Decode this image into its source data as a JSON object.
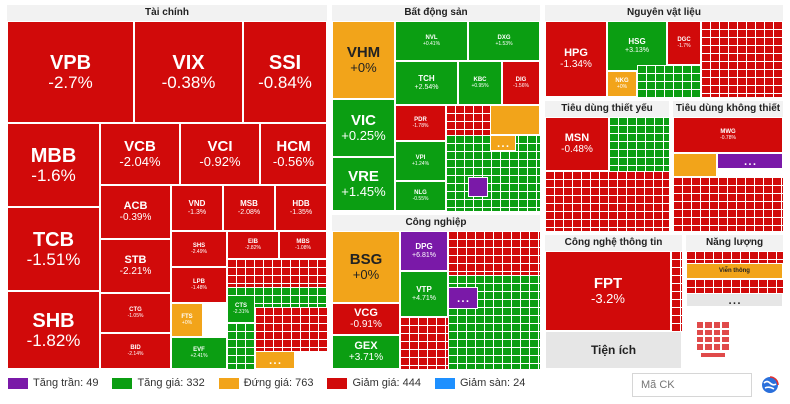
{
  "sectors": {
    "tai_chinh": "Tài chính",
    "bat_dong_san": "Bất động sản",
    "nguyen_vat_lieu": "Nguyên vật liệu",
    "tieu_dung_thiet_yeu": "Tiêu dùng thiết yếu",
    "tieu_dung_khong_thiet_yeu": "Tiêu dùng không thiết yếu",
    "cong_nghiep": "Công nghiệp",
    "cong_nghe_thong_tin": "Công nghệ thông tin",
    "nang_luong": "Năng lượng",
    "vien_thong": "Viễn thông",
    "tien_ich": "Tiện ích"
  },
  "tiles": {
    "VPB": {
      "sym": "VPB",
      "chg": "-2.7%"
    },
    "VIX": {
      "sym": "VIX",
      "chg": "-0.38%"
    },
    "SSI": {
      "sym": "SSI",
      "chg": "-0.84%"
    },
    "MBB": {
      "sym": "MBB",
      "chg": "-1.6%"
    },
    "VCB": {
      "sym": "VCB",
      "chg": "-2.04%"
    },
    "VCI": {
      "sym": "VCI",
      "chg": "-0.92%"
    },
    "HCM": {
      "sym": "HCM",
      "chg": "-0.56%"
    },
    "TCB": {
      "sym": "TCB",
      "chg": "-1.51%"
    },
    "ACB": {
      "sym": "ACB",
      "chg": "-0.39%"
    },
    "VND": {
      "sym": "VND",
      "chg": "-1.3%"
    },
    "MSB": {
      "sym": "MSB",
      "chg": "-2.08%"
    },
    "HDB": {
      "sym": "HDB",
      "chg": "-1.35%"
    },
    "SHB": {
      "sym": "SHB",
      "chg": "-1.82%"
    },
    "STB": {
      "sym": "STB",
      "chg": "-2.21%"
    },
    "SHS": {
      "sym": "SHS",
      "chg": "-2.49%"
    },
    "EIB": {
      "sym": "EIB",
      "chg": "-2.82%"
    },
    "MBS": {
      "sym": "MBS",
      "chg": "-1.08%"
    },
    "LPB": {
      "sym": "LPB",
      "chg": "-1.48%"
    },
    "CTG": {
      "sym": "CTG",
      "chg": "-1.05%"
    },
    "FTS": {
      "sym": "FTS",
      "chg": "+0%"
    },
    "CTS": {
      "sym": "CTS",
      "chg": "-2.31%"
    },
    "BID": {
      "sym": "BID",
      "chg": "-2.14%"
    },
    "EVF": {
      "sym": "EVF",
      "chg": "+2.41%"
    },
    "VHM": {
      "sym": "VHM",
      "chg": "+0%"
    },
    "NVL": {
      "sym": "NVL",
      "chg": "+0.41%"
    },
    "DXG": {
      "sym": "DXG",
      "chg": "+1.53%"
    },
    "TCH": {
      "sym": "TCH",
      "chg": "+2.54%"
    },
    "KBC": {
      "sym": "KBC",
      "chg": "+0.95%"
    },
    "DIG": {
      "sym": "DIG",
      "chg": "-1.56%"
    },
    "VIC": {
      "sym": "VIC",
      "chg": "+0.25%"
    },
    "PDR": {
      "sym": "PDR",
      "chg": "-1.78%"
    },
    "VRE": {
      "sym": "VRE",
      "chg": "+1.45%"
    },
    "VPI": {
      "sym": "VPI",
      "chg": "+1.24%"
    },
    "NLG": {
      "sym": "NLG",
      "chg": "-0.55%"
    },
    "HPG": {
      "sym": "HPG",
      "chg": "-1.34%"
    },
    "HSG": {
      "sym": "HSG",
      "chg": "+3.13%"
    },
    "DGC": {
      "sym": "DGC",
      "chg": "-1.7%"
    },
    "NKG": {
      "sym": "NKG",
      "chg": "+0%"
    },
    "MSN": {
      "sym": "MSN",
      "chg": "-0.48%"
    },
    "MWG": {
      "sym": "MWG",
      "chg": "-0.78%"
    },
    "BSG": {
      "sym": "BSG",
      "chg": "+0%"
    },
    "DPG": {
      "sym": "DPG",
      "chg": "+6.81%"
    },
    "VCG": {
      "sym": "VCG",
      "chg": "-0.91%"
    },
    "VTP": {
      "sym": "VTP",
      "chg": "+4.71%"
    },
    "GEX": {
      "sym": "GEX",
      "chg": "+3.71%"
    },
    "FPT": {
      "sym": "FPT",
      "chg": "-3.2%"
    }
  },
  "more": "...",
  "legend": {
    "tang_tran": "Tăng trần: 49",
    "tang_gia": "Tăng giá: 332",
    "dung_gia": "Đứng giá: 763",
    "giam_gia": "Giảm giá: 444",
    "giam_san": "Giảm sàn: 24"
  },
  "colors": {
    "ceiling": "#7a19a8",
    "up": "#0b9e12",
    "flat": "#f2a41a",
    "down": "#d10a0a",
    "floor": "#1e90ff"
  },
  "search": {
    "placeholder": "Mã CK"
  },
  "icons": {
    "language": "globe-icon",
    "brand": "logo-icon"
  }
}
